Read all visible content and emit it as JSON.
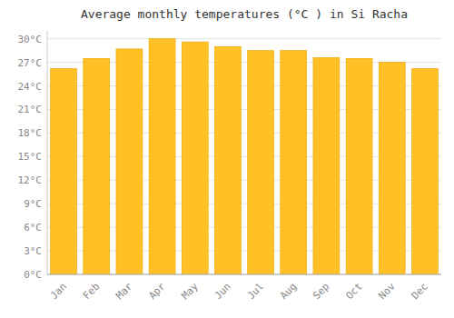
{
  "chart_data": {
    "type": "bar",
    "title": "Average monthly temperatures (°C ) in Si Racha",
    "categories": [
      "Jan",
      "Feb",
      "Mar",
      "Apr",
      "May",
      "Jun",
      "Jul",
      "Aug",
      "Sep",
      "Oct",
      "Nov",
      "Dec"
    ],
    "values": [
      26.2,
      27.5,
      28.7,
      30.0,
      29.6,
      29.0,
      28.5,
      28.5,
      27.6,
      27.5,
      27.0,
      26.2
    ],
    "color": "#FFC125",
    "ylim": [
      0,
      31
    ],
    "yticks": [
      {
        "value": 0,
        "label": "0°C"
      },
      {
        "value": 3,
        "label": "3°C"
      },
      {
        "value": 6,
        "label": "6°C"
      },
      {
        "value": 9,
        "label": "9°C"
      },
      {
        "value": 12,
        "label": "12°C"
      },
      {
        "value": 15,
        "label": "15°C"
      },
      {
        "value": 18,
        "label": "18°C"
      },
      {
        "value": 21,
        "label": "21°C"
      },
      {
        "value": 24,
        "label": "24°C"
      },
      {
        "value": 27,
        "label": "27°C"
      },
      {
        "value": 30,
        "label": "30°C"
      }
    ],
    "grid": true
  }
}
